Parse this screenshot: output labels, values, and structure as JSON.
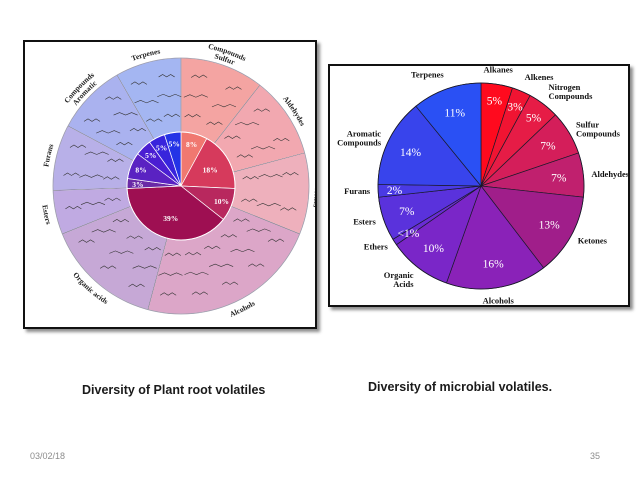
{
  "chart_data": [
    {
      "type": "pie",
      "title": "",
      "categories": [
        "Sulfur Compounds",
        "Aldehydes",
        "Ketones",
        "Alcohols",
        "Organic acids",
        "Esters",
        "Furans",
        "Aromatic Compounds",
        "Terpenes"
      ],
      "values": [
        8,
        18,
        10,
        39,
        3,
        8,
        5,
        5,
        5
      ],
      "value_labels": [
        "8%",
        "18%",
        "10%",
        "39%",
        "3%",
        "8%",
        "5%",
        "5%",
        "5%"
      ],
      "colors": [
        "#f07870",
        "#d63a5c",
        "#b8285e",
        "#9e0f52",
        "#6a2aa6",
        "#5a22c2",
        "#4a1ed2",
        "#3824dc",
        "#2433e6"
      ],
      "outer_colors": [
        "#f4a4a2",
        "#f2a8b0",
        "#eeb0bc",
        "#dca6c8",
        "#c6a8d6",
        "#c0aae2",
        "#b8b0e8",
        "#aab2ef",
        "#a4b6f2"
      ],
      "ring_labels": [
        "Sulfur Compounds",
        "Aldehydes",
        "Ketones",
        "Alcohols",
        "Organic acids",
        "Esters",
        "Furans",
        "Aromatic Compounds",
        "Terpenes"
      ]
    },
    {
      "type": "pie",
      "title": "",
      "categories": [
        "Alkanes",
        "Alkenes",
        "Nitrogen Compounds",
        "Sulfur Compounds",
        "Aldehydes",
        "Ketones",
        "Alcohols",
        "Organic Acids",
        "Ethers",
        "Esters",
        "Furans",
        "Aromatic Compounds",
        "Terpenes"
      ],
      "values": [
        5,
        3,
        5,
        7,
        7,
        13,
        16,
        10,
        1,
        7,
        2,
        14,
        11
      ],
      "value_labels": [
        "5%",
        "3%",
        "5%",
        "7%",
        "7%",
        "13%",
        "16%",
        "10%",
        "<1%",
        "7%",
        "2%",
        "14%",
        "11%"
      ],
      "colors": [
        "#ff0a1e",
        "#f01432",
        "#e61c46",
        "#d41e5a",
        "#c0206e",
        "#a01e8a",
        "#8a22b8",
        "#7a26c8",
        "#6a2cd4",
        "#5a32dc",
        "#4a3ae4",
        "#3844ec",
        "#2a50f4"
      ]
    }
  ],
  "captions": {
    "left": "Diversity of Plant root volatiles",
    "right": "Diversity of microbial volatiles."
  },
  "footer": {
    "date": "03/02/18",
    "page": "35"
  }
}
